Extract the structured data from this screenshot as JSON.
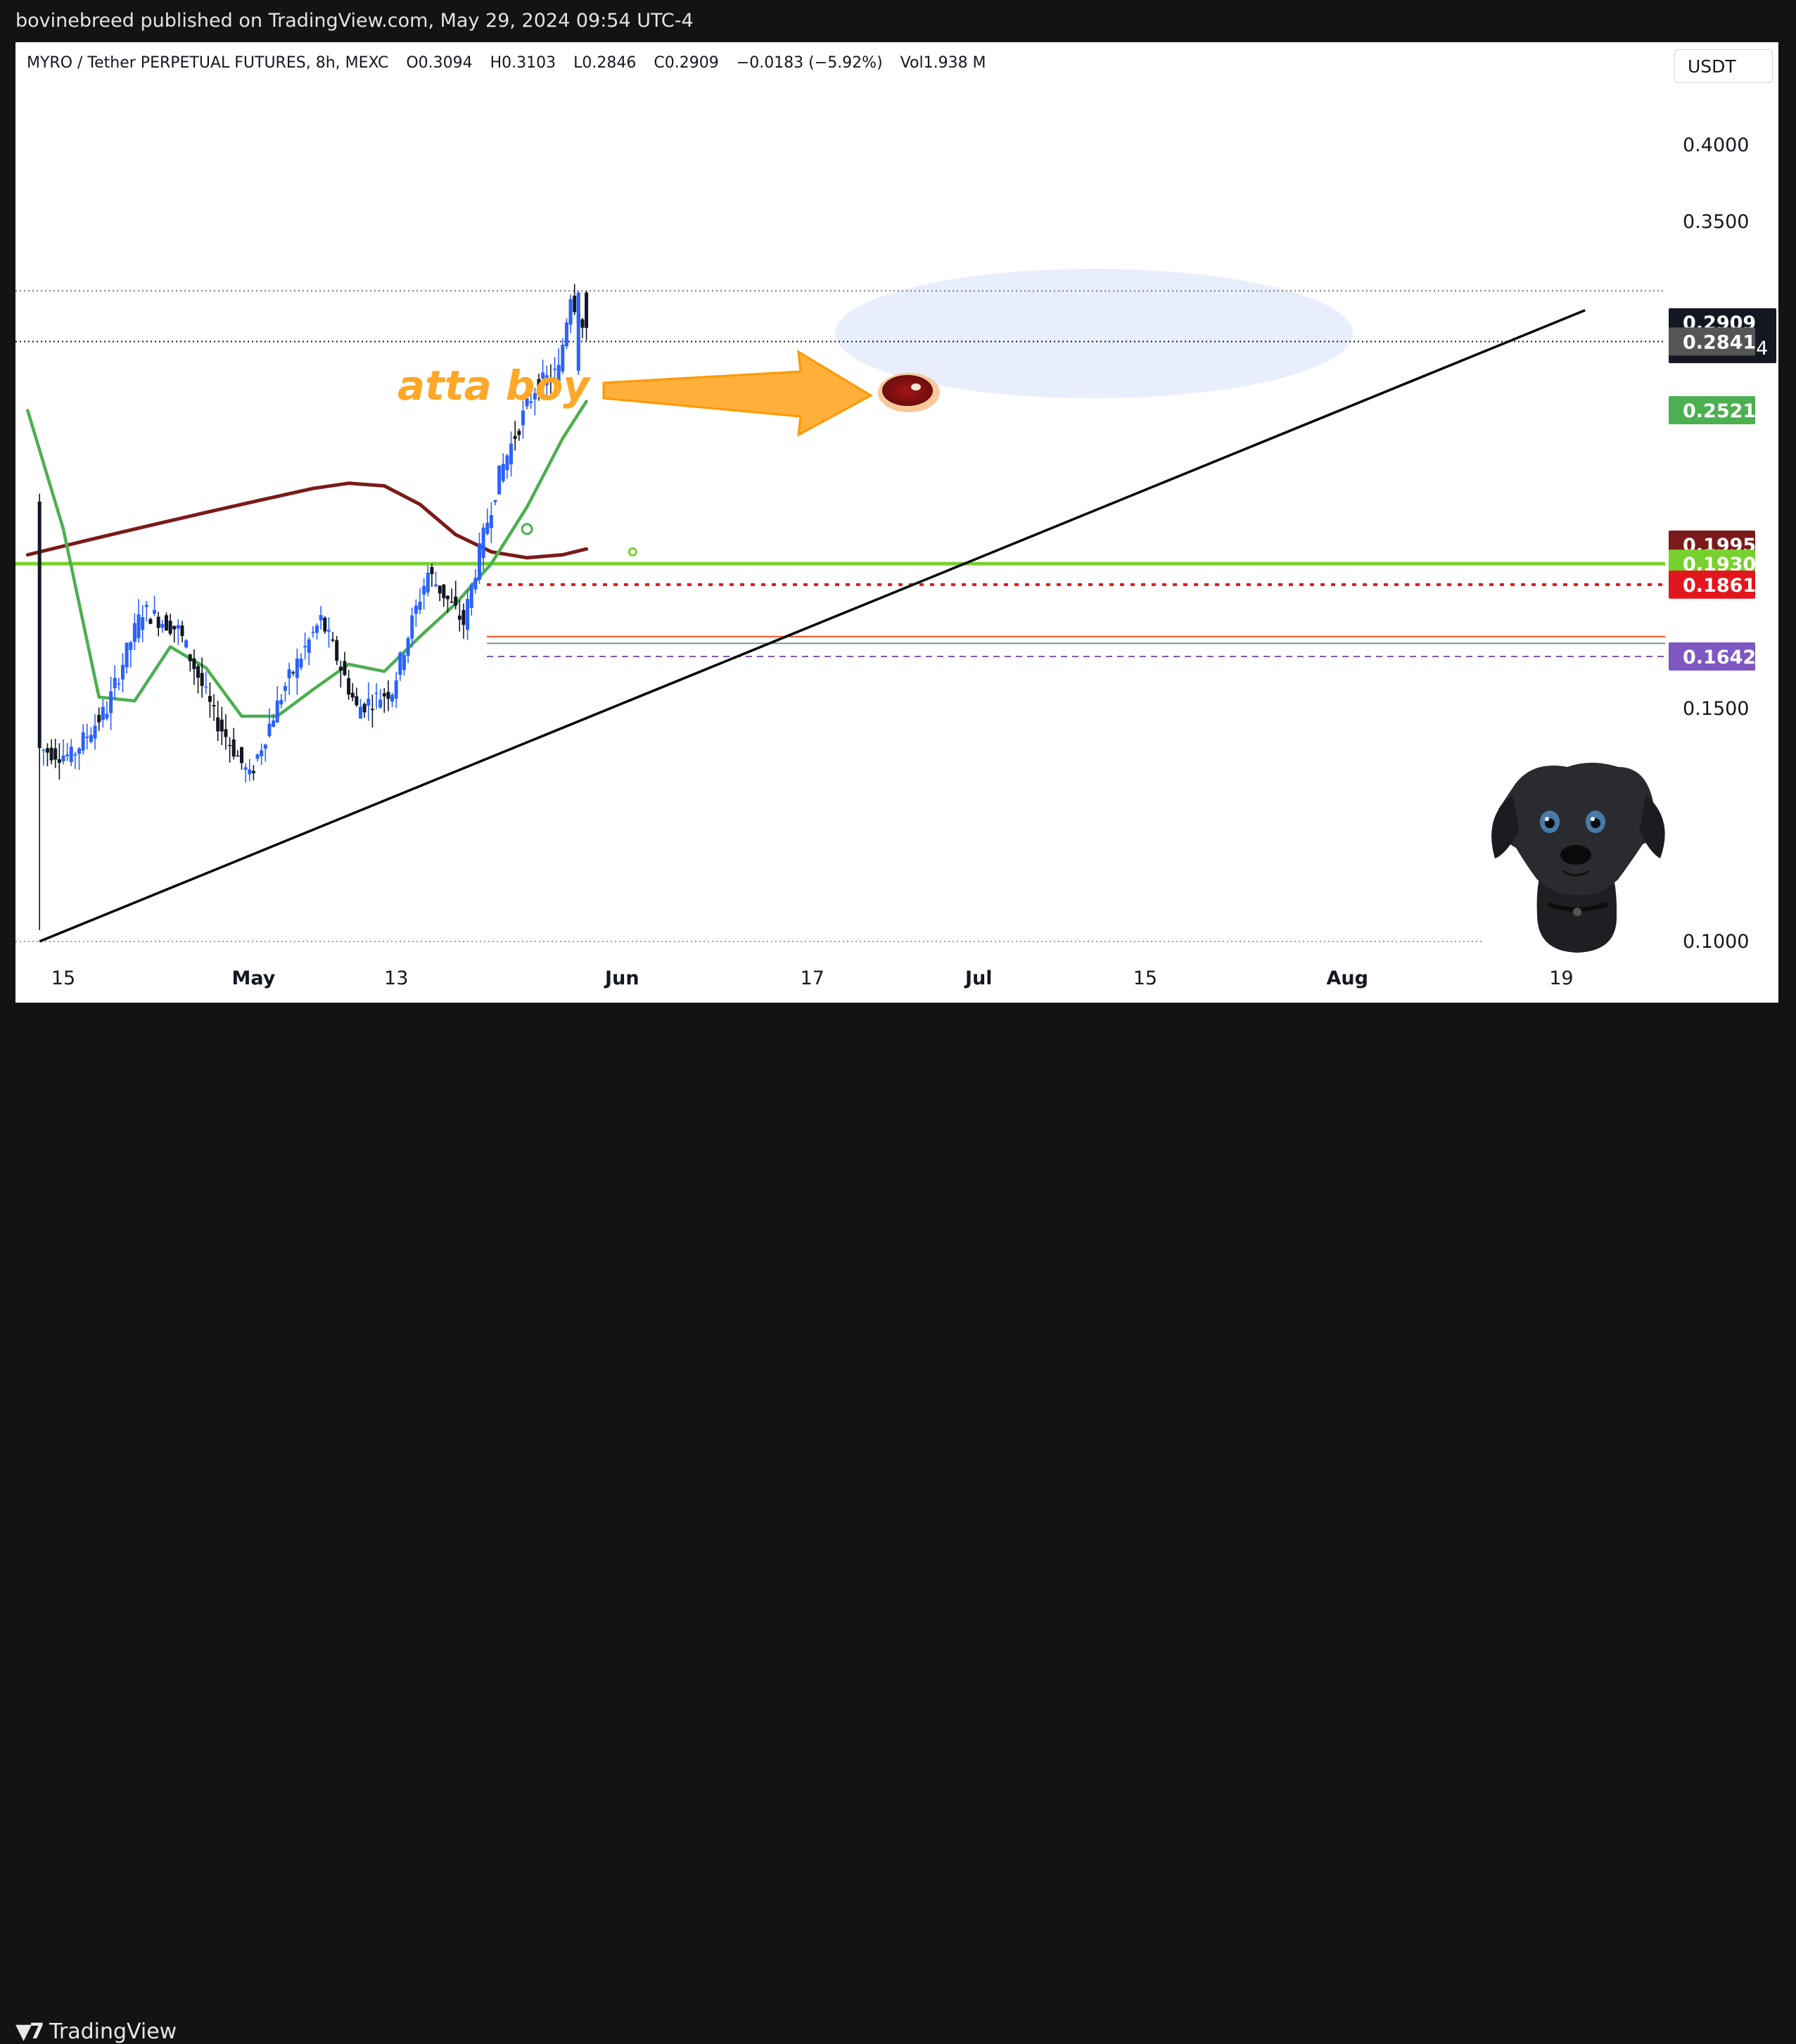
{
  "header": {
    "published": "bovinebreed published on TradingView.com, May 29, 2024 09:54 UTC-4"
  },
  "legend": {
    "symbol": "MYRO / Tether PERPETUAL FUTURES, 8h, MEXC",
    "open": "O0.3094",
    "high": "H0.3103",
    "low": "L0.2846",
    "close": "C0.2909",
    "change": "−0.0183 (−5.92%)",
    "volume": "Vol1.938 M"
  },
  "currency_button": "USDT",
  "footer": {
    "brand": "TradingView"
  },
  "annotation": {
    "text": "atta boy",
    "icon": "steak-icon",
    "mascot": "dog-mascot-illustration"
  },
  "colors": {
    "up": "#2962ff",
    "down": "#131722",
    "ema_fast": "#4caf50",
    "ema_slow": "#7b1a1a",
    "support_green": "#76d12f",
    "resistance_red": "#e3161e",
    "annotation_orange": "#ffa726"
  },
  "chart_data": {
    "type": "candlestick",
    "timeframe": "8h",
    "y_scale": "log",
    "ylim": [
      0.0995,
      0.44
    ],
    "y_ticks": [
      0.4,
      0.35,
      0.15,
      0.1
    ],
    "y_tick_labels": [
      "0.4000",
      "0.3500",
      "0.1500",
      "0.1000"
    ],
    "x_ticks": [
      {
        "label": "15",
        "date": "2024-04-15"
      },
      {
        "label": "May",
        "date": "2024-05-01"
      },
      {
        "label": "13",
        "date": "2024-05-13"
      },
      {
        "label": "Jun",
        "date": "2024-06-01"
      },
      {
        "label": "17",
        "date": "2024-06-17"
      },
      {
        "label": "Jul",
        "date": "2024-07-01"
      },
      {
        "label": "15",
        "date": "2024-07-15"
      },
      {
        "label": "Aug",
        "date": "2024-08-01"
      },
      {
        "label": "19",
        "date": "2024-08-19"
      }
    ],
    "price_badges": [
      {
        "label": "0.2909",
        "sub": "02:05:04",
        "value": 0.2909,
        "color": "#131722"
      },
      {
        "label": "0.2841",
        "value": 0.2841,
        "color": "#555555"
      },
      {
        "label": "0.2521",
        "value": 0.2521,
        "color": "#4caf50"
      },
      {
        "label": "0.1995",
        "value": 0.1995,
        "color": "#7b1a1a"
      },
      {
        "label": "0.1930",
        "value": 0.193,
        "color": "#76d12f"
      },
      {
        "label": "0.1861",
        "value": 0.1861,
        "color": "#e3161e"
      },
      {
        "label": "0.1642",
        "value": 0.1642,
        "color": "#7e57c2"
      }
    ],
    "series": [
      {
        "name": "EMA fast",
        "dates": [
          "2024-04-12",
          "2024-04-15",
          "2024-04-18",
          "2024-04-21",
          "2024-04-24",
          "2024-04-27",
          "2024-04-30",
          "2024-05-03",
          "2024-05-06",
          "2024-05-09",
          "2024-05-12",
          "2024-05-15",
          "2024-05-18",
          "2024-05-21",
          "2024-05-24",
          "2024-05-27",
          "2024-05-29"
        ],
        "values": [
          0.252,
          0.205,
          0.153,
          0.152,
          0.167,
          0.161,
          0.148,
          0.148,
          0.155,
          0.162,
          0.16,
          0.17,
          0.18,
          0.193,
          0.213,
          0.24,
          0.256
        ]
      },
      {
        "name": "EMA slow",
        "dates": [
          "2024-04-12",
          "2024-04-17",
          "2024-04-22",
          "2024-04-27",
          "2024-05-02",
          "2024-05-06",
          "2024-05-09",
          "2024-05-12",
          "2024-05-15",
          "2024-05-18",
          "2024-05-21",
          "2024-05-24",
          "2024-05-27",
          "2024-05-29"
        ],
        "values": [
          0.196,
          0.201,
          0.206,
          0.211,
          0.216,
          0.22,
          0.222,
          0.221,
          0.214,
          0.203,
          0.197,
          0.195,
          0.196,
          0.198
        ]
      }
    ],
    "ohlc_sample": [
      {
        "date": "2024-04-13",
        "o": 0.215,
        "h": 0.218,
        "l": 0.102,
        "c": 0.14
      },
      {
        "date": "2024-04-16",
        "o": 0.14,
        "h": 0.15,
        "l": 0.125,
        "c": 0.138
      },
      {
        "date": "2024-04-19",
        "o": 0.138,
        "h": 0.16,
        "l": 0.135,
        "c": 0.15
      },
      {
        "date": "2024-04-22",
        "o": 0.15,
        "h": 0.183,
        "l": 0.145,
        "c": 0.178
      },
      {
        "date": "2024-04-25",
        "o": 0.178,
        "h": 0.19,
        "l": 0.168,
        "c": 0.172
      },
      {
        "date": "2024-04-28",
        "o": 0.172,
        "h": 0.178,
        "l": 0.143,
        "c": 0.148
      },
      {
        "date": "2024-05-01",
        "o": 0.148,
        "h": 0.152,
        "l": 0.122,
        "c": 0.133
      },
      {
        "date": "2024-05-04",
        "o": 0.133,
        "h": 0.16,
        "l": 0.13,
        "c": 0.156
      },
      {
        "date": "2024-05-07",
        "o": 0.156,
        "h": 0.182,
        "l": 0.15,
        "c": 0.175
      },
      {
        "date": "2024-05-10",
        "o": 0.175,
        "h": 0.18,
        "l": 0.143,
        "c": 0.15
      },
      {
        "date": "2024-05-13",
        "o": 0.15,
        "h": 0.16,
        "l": 0.144,
        "c": 0.155
      },
      {
        "date": "2024-05-16",
        "o": 0.155,
        "h": 0.198,
        "l": 0.152,
        "c": 0.19
      },
      {
        "date": "2024-05-19",
        "o": 0.19,
        "h": 0.198,
        "l": 0.17,
        "c": 0.174
      },
      {
        "date": "2024-05-22",
        "o": 0.174,
        "h": 0.232,
        "l": 0.172,
        "c": 0.225
      },
      {
        "date": "2024-05-25",
        "o": 0.225,
        "h": 0.28,
        "l": 0.21,
        "c": 0.262
      },
      {
        "date": "2024-05-27",
        "o": 0.262,
        "h": 0.284,
        "l": 0.245,
        "c": 0.27
      },
      {
        "date": "2024-05-28",
        "o": 0.27,
        "h": 0.3103,
        "l": 0.268,
        "c": 0.3094
      },
      {
        "date": "2024-05-29",
        "o": 0.3094,
        "h": 0.3103,
        "l": 0.2846,
        "c": 0.2909
      }
    ],
    "horizontal_lines": [
      {
        "value": 0.3103,
        "style": "dotted",
        "color": "#787b86"
      },
      {
        "value": 0.2841,
        "style": "dotted",
        "color": "#131722"
      },
      {
        "value": 0.193,
        "style": "solid",
        "color": "#76d12f"
      },
      {
        "value": 0.1861,
        "style": "dotted",
        "color": "#e3161e"
      },
      {
        "value": 0.17,
        "style": "solid",
        "color": "#f4511e"
      },
      {
        "value": 0.168,
        "style": "solid",
        "color": "#78909c"
      },
      {
        "value": 0.1642,
        "style": "dashed",
        "color": "#7e57c2"
      },
      {
        "value": 0.1,
        "style": "dotted",
        "color": "#9e9e9e"
      }
    ],
    "trendline": {
      "from": {
        "date": "2024-04-13",
        "value": 0.1
      },
      "to": {
        "date": "2024-08-21",
        "value": 0.3
      }
    }
  }
}
